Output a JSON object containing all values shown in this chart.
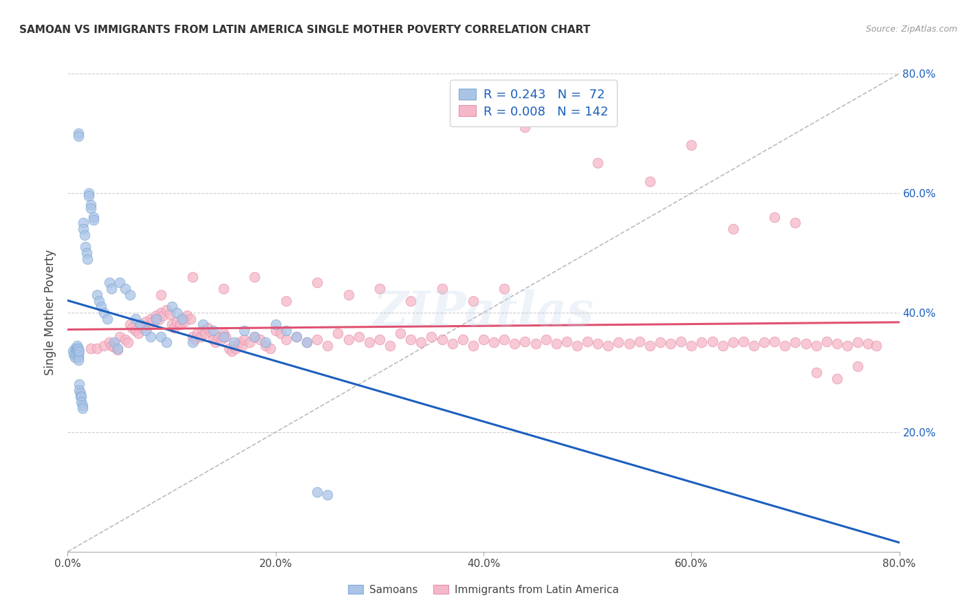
{
  "title": "SAMOAN VS IMMIGRANTS FROM LATIN AMERICA SINGLE MOTHER POVERTY CORRELATION CHART",
  "source": "Source: ZipAtlas.com",
  "ylabel": "Single Mother Poverty",
  "xlim": [
    0,
    0.8
  ],
  "ylim": [
    0,
    0.8
  ],
  "xtick_vals": [
    0.0,
    0.2,
    0.4,
    0.6,
    0.8
  ],
  "xtick_labels": [
    "0.0%",
    "20.0%",
    "40.0%",
    "60.0%",
    "80.0%"
  ],
  "ytick_vals": [
    0.2,
    0.4,
    0.6,
    0.8
  ],
  "ytick_labels": [
    "20.0%",
    "40.0%",
    "60.0%",
    "80.0%"
  ],
  "grid_color": "#cccccc",
  "background_color": "#ffffff",
  "samoans_color": "#aac4e8",
  "samoans_edge_color": "#80aad0",
  "latin_color": "#f5b8c8",
  "latin_edge_color": "#e890aa",
  "R_samoan": "0.243",
  "N_samoan": "72",
  "R_latin": "0.008",
  "N_latin": "142",
  "legend_label_samoan": "Samoans",
  "legend_label_latin": "Immigrants from Latin America",
  "regression_samoan_color": "#1a5fbe",
  "regression_latin_color": "#e05070",
  "diagonal_color": "#aaaaaa",
  "watermark": "ZIPatlas",
  "title_fontsize": 11,
  "tick_fontsize": 11,
  "legend_fontsize": 13,
  "right_tick_color": "#1a5fbe",
  "marker_size": 110,
  "marker_alpha": 0.75,
  "samoans_x": [
    0.005,
    0.006,
    0.007,
    0.007,
    0.008,
    0.008,
    0.008,
    0.009,
    0.009,
    0.01,
    0.01,
    0.01,
    0.01,
    0.01,
    0.01,
    0.011,
    0.011,
    0.011,
    0.012,
    0.012,
    0.013,
    0.013,
    0.014,
    0.014,
    0.015,
    0.015,
    0.016,
    0.017,
    0.018,
    0.019,
    0.02,
    0.02,
    0.022,
    0.022,
    0.025,
    0.025,
    0.028,
    0.03,
    0.032,
    0.035,
    0.038,
    0.04,
    0.042,
    0.045,
    0.048,
    0.05,
    0.055,
    0.06,
    0.065,
    0.07,
    0.075,
    0.08,
    0.085,
    0.09,
    0.095,
    0.1,
    0.105,
    0.11,
    0.12,
    0.13,
    0.14,
    0.15,
    0.16,
    0.17,
    0.18,
    0.19,
    0.2,
    0.21,
    0.22,
    0.23,
    0.24,
    0.25
  ],
  "samoans_y": [
    0.335,
    0.33,
    0.34,
    0.325,
    0.34,
    0.335,
    0.33,
    0.34,
    0.345,
    0.7,
    0.695,
    0.34,
    0.33,
    0.325,
    0.32,
    0.335,
    0.28,
    0.27,
    0.265,
    0.26,
    0.26,
    0.25,
    0.245,
    0.24,
    0.55,
    0.54,
    0.53,
    0.51,
    0.5,
    0.49,
    0.6,
    0.595,
    0.58,
    0.575,
    0.56,
    0.555,
    0.43,
    0.42,
    0.41,
    0.4,
    0.39,
    0.45,
    0.44,
    0.35,
    0.34,
    0.45,
    0.44,
    0.43,
    0.39,
    0.38,
    0.37,
    0.36,
    0.39,
    0.36,
    0.35,
    0.41,
    0.4,
    0.39,
    0.35,
    0.38,
    0.37,
    0.36,
    0.35,
    0.37,
    0.36,
    0.35,
    0.38,
    0.37,
    0.36,
    0.35,
    0.1,
    0.095
  ],
  "latin_x": [
    0.022,
    0.028,
    0.035,
    0.04,
    0.042,
    0.045,
    0.048,
    0.05,
    0.055,
    0.058,
    0.06,
    0.062,
    0.065,
    0.068,
    0.07,
    0.072,
    0.075,
    0.078,
    0.08,
    0.082,
    0.085,
    0.088,
    0.09,
    0.092,
    0.095,
    0.098,
    0.1,
    0.102,
    0.105,
    0.108,
    0.11,
    0.112,
    0.115,
    0.118,
    0.12,
    0.122,
    0.125,
    0.128,
    0.13,
    0.132,
    0.135,
    0.138,
    0.14,
    0.142,
    0.145,
    0.148,
    0.15,
    0.152,
    0.155,
    0.158,
    0.16,
    0.162,
    0.165,
    0.168,
    0.17,
    0.175,
    0.18,
    0.185,
    0.19,
    0.195,
    0.2,
    0.205,
    0.21,
    0.22,
    0.23,
    0.24,
    0.25,
    0.26,
    0.27,
    0.28,
    0.29,
    0.3,
    0.31,
    0.32,
    0.33,
    0.34,
    0.35,
    0.36,
    0.37,
    0.38,
    0.39,
    0.4,
    0.41,
    0.42,
    0.43,
    0.44,
    0.45,
    0.46,
    0.47,
    0.48,
    0.49,
    0.5,
    0.51,
    0.52,
    0.53,
    0.54,
    0.55,
    0.56,
    0.57,
    0.58,
    0.59,
    0.6,
    0.61,
    0.62,
    0.63,
    0.64,
    0.65,
    0.66,
    0.67,
    0.68,
    0.69,
    0.7,
    0.71,
    0.72,
    0.73,
    0.74,
    0.75,
    0.76,
    0.77,
    0.778,
    0.44,
    0.51,
    0.56,
    0.6,
    0.64,
    0.68,
    0.7,
    0.72,
    0.74,
    0.76,
    0.09,
    0.12,
    0.15,
    0.18,
    0.21,
    0.24,
    0.27,
    0.3,
    0.33,
    0.36,
    0.39,
    0.42
  ],
  "latin_y": [
    0.34,
    0.34,
    0.345,
    0.35,
    0.345,
    0.342,
    0.338,
    0.36,
    0.355,
    0.35,
    0.38,
    0.375,
    0.37,
    0.365,
    0.38,
    0.375,
    0.385,
    0.378,
    0.39,
    0.385,
    0.395,
    0.388,
    0.4,
    0.395,
    0.405,
    0.398,
    0.38,
    0.375,
    0.385,
    0.38,
    0.39,
    0.385,
    0.395,
    0.39,
    0.36,
    0.355,
    0.365,
    0.36,
    0.37,
    0.365,
    0.375,
    0.368,
    0.355,
    0.35,
    0.36,
    0.355,
    0.365,
    0.36,
    0.34,
    0.335,
    0.345,
    0.34,
    0.35,
    0.345,
    0.355,
    0.35,
    0.36,
    0.355,
    0.345,
    0.34,
    0.37,
    0.365,
    0.355,
    0.36,
    0.35,
    0.355,
    0.345,
    0.365,
    0.355,
    0.36,
    0.35,
    0.355,
    0.345,
    0.365,
    0.355,
    0.35,
    0.36,
    0.355,
    0.348,
    0.355,
    0.345,
    0.355,
    0.35,
    0.355,
    0.348,
    0.352,
    0.348,
    0.355,
    0.348,
    0.352,
    0.345,
    0.352,
    0.348,
    0.345,
    0.35,
    0.348,
    0.352,
    0.345,
    0.35,
    0.348,
    0.352,
    0.345,
    0.35,
    0.352,
    0.345,
    0.35,
    0.352,
    0.345,
    0.35,
    0.352,
    0.345,
    0.35,
    0.348,
    0.345,
    0.352,
    0.348,
    0.345,
    0.35,
    0.348,
    0.345,
    0.71,
    0.65,
    0.62,
    0.68,
    0.54,
    0.56,
    0.55,
    0.3,
    0.29,
    0.31,
    0.43,
    0.46,
    0.44,
    0.46,
    0.42,
    0.45,
    0.43,
    0.44,
    0.42,
    0.44,
    0.42,
    0.44
  ]
}
